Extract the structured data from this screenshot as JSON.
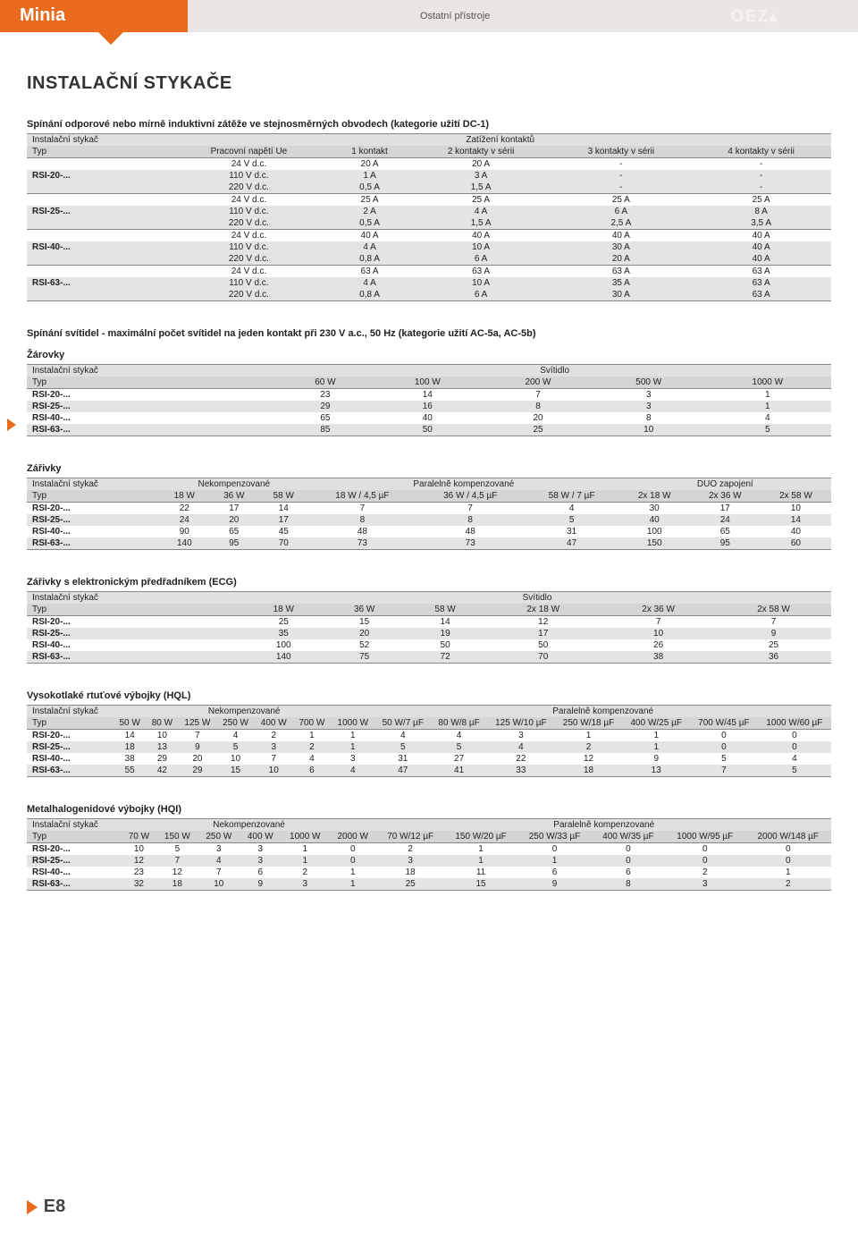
{
  "header": {
    "brand": "Minia",
    "mid": "Ostatní přístroje",
    "logo": "OEZ▴"
  },
  "title": "INSTALAČNÍ STYKAČE",
  "footer": "E8",
  "t1": {
    "caption": "Spínání odporové nebo mírně induktivní zátěže ve stejnosměrných obvodech (kategorie užití DC-1)",
    "h1": "Instalační stykač",
    "h2": "Zatížení kontaktů",
    "cols": [
      "Typ",
      "Pracovní napětí Ue",
      "1 kontakt",
      "2 kontakty v sérii",
      "3 kontakty v sérii",
      "4 kontakty v sérii"
    ],
    "groups": [
      {
        "type": "RSI-20-...",
        "rows": [
          [
            "24 V d.c.",
            "20 A",
            "20 A",
            "-",
            "-"
          ],
          [
            "110 V d.c.",
            "1 A",
            "3 A",
            "-",
            "-"
          ],
          [
            "220 V d.c.",
            "0,5 A",
            "1,5 A",
            "-",
            "-"
          ]
        ]
      },
      {
        "type": "RSI-25-...",
        "rows": [
          [
            "24 V d.c.",
            "25 A",
            "25 A",
            "25 A",
            "25 A"
          ],
          [
            "110 V d.c.",
            "2 A",
            "4 A",
            "6 A",
            "8 A"
          ],
          [
            "220 V d.c.",
            "0,5 A",
            "1,5 A",
            "2,5 A",
            "3,5 A"
          ]
        ]
      },
      {
        "type": "RSI-40-...",
        "rows": [
          [
            "24 V d.c.",
            "40 A",
            "40 A",
            "40 A",
            "40 A"
          ],
          [
            "110 V d.c.",
            "4 A",
            "10 A",
            "30 A",
            "40 A"
          ],
          [
            "220 V d.c.",
            "0,8 A",
            "6 A",
            "20 A",
            "40 A"
          ]
        ]
      },
      {
        "type": "RSI-63-...",
        "rows": [
          [
            "24 V d.c.",
            "63 A",
            "63 A",
            "63 A",
            "63 A"
          ],
          [
            "110 V d.c.",
            "4 A",
            "10 A",
            "35 A",
            "63 A"
          ],
          [
            "220 V d.c.",
            "0,8 A",
            "6 A",
            "30 A",
            "63 A"
          ]
        ]
      }
    ]
  },
  "t2": {
    "caption": "Spínání svítidel - maximální počet svítidel na jeden kontakt při 230 V a.c., 50 Hz  (kategorie užití AC-5a, AC-5b)",
    "sub": "Žárovky",
    "h1": "Instalační stykač",
    "h2": "Svítidlo",
    "cols": [
      "Typ",
      "60 W",
      "100 W",
      "200 W",
      "500 W",
      "1000 W"
    ],
    "rows": [
      [
        "RSI-20-...",
        "23",
        "14",
        "7",
        "3",
        "1"
      ],
      [
        "RSI-25-...",
        "29",
        "16",
        "8",
        "3",
        "1"
      ],
      [
        "RSI-40-...",
        "65",
        "40",
        "20",
        "8",
        "4"
      ],
      [
        "RSI-63-...",
        "85",
        "50",
        "25",
        "10",
        "5"
      ]
    ]
  },
  "t3": {
    "sub": "Zářivky",
    "h1": "Instalační stykač",
    "groups": [
      "Nekompenzované",
      "Paralelně kompenzované",
      "DUO zapojení"
    ],
    "cols": [
      "Typ",
      "18 W",
      "36 W",
      "58 W",
      "18 W / 4,5 µF",
      "36 W / 4,5 µF",
      "58 W /  7 µF",
      "2x 18 W",
      "2x 36 W",
      "2x 58 W"
    ],
    "rows": [
      [
        "RSI-20-...",
        "22",
        "17",
        "14",
        "7",
        "7",
        "4",
        "30",
        "17",
        "10"
      ],
      [
        "RSI-25-...",
        "24",
        "20",
        "17",
        "8",
        "8",
        "5",
        "40",
        "24",
        "14"
      ],
      [
        "RSI-40-...",
        "90",
        "65",
        "45",
        "48",
        "48",
        "31",
        "100",
        "65",
        "40"
      ],
      [
        "RSI-63-...",
        "140",
        "95",
        "70",
        "73",
        "73",
        "47",
        "150",
        "95",
        "60"
      ]
    ]
  },
  "t4": {
    "sub": "Zářivky s elektronickým předřadníkem (ECG)",
    "h1": "Instalační stykač",
    "h2": "Svítidlo",
    "cols": [
      "Typ",
      "18 W",
      "36 W",
      "58 W",
      "2x 18 W",
      "2x 36 W",
      "2x 58 W"
    ],
    "rows": [
      [
        "RSI-20-...",
        "25",
        "15",
        "14",
        "12",
        "7",
        "7"
      ],
      [
        "RSI-25-...",
        "35",
        "20",
        "19",
        "17",
        "10",
        "9"
      ],
      [
        "RSI-40-...",
        "100",
        "52",
        "50",
        "50",
        "26",
        "25"
      ],
      [
        "RSI-63-...",
        "140",
        "75",
        "72",
        "70",
        "38",
        "36"
      ]
    ]
  },
  "t5": {
    "sub": "Vysokotlaké rtuťové výbojky (HQL)",
    "h1": "Instalační stykač",
    "groups": [
      "Nekompenzované",
      "Paralelně  kompenzované"
    ],
    "cols": [
      "Typ",
      "50 W",
      "80 W",
      "125 W",
      "250 W",
      "400 W",
      "700 W",
      "1000 W",
      "50 W/7 µF",
      "80 W/8 µF",
      "125 W/10 µF",
      "250 W/18 µF",
      "400 W/25 µF",
      "700 W/45 µF",
      "1000 W/60 µF"
    ],
    "rows": [
      [
        "RSI-20-...",
        "14",
        "10",
        "7",
        "4",
        "2",
        "1",
        "1",
        "4",
        "4",
        "3",
        "1",
        "1",
        "0",
        "0"
      ],
      [
        "RSI-25-...",
        "18",
        "13",
        "9",
        "5",
        "3",
        "2",
        "1",
        "5",
        "5",
        "4",
        "2",
        "1",
        "0",
        "0"
      ],
      [
        "RSI-40-...",
        "38",
        "29",
        "20",
        "10",
        "7",
        "4",
        "3",
        "31",
        "27",
        "22",
        "12",
        "9",
        "5",
        "4"
      ],
      [
        "RSI-63-...",
        "55",
        "42",
        "29",
        "15",
        "10",
        "6",
        "4",
        "47",
        "41",
        "33",
        "18",
        "13",
        "7",
        "5"
      ]
    ]
  },
  "t6": {
    "sub": "Metalhalogenidové výbojky (HQI)",
    "h1": "Instalační stykač",
    "groups": [
      "Nekompenzované",
      "Paralelně kompenzované"
    ],
    "cols": [
      "Typ",
      "70 W",
      "150 W",
      "250 W",
      "400 W",
      "1000 W",
      "2000 W",
      "70 W/12 µF",
      "150 W/20 µF",
      "250 W/33 µF",
      "400 W/35 µF",
      "1000 W/95 µF",
      "2000 W/148 µF"
    ],
    "rows": [
      [
        "RSI-20-...",
        "10",
        "5",
        "3",
        "3",
        "1",
        "0",
        "2",
        "1",
        "0",
        "0",
        "0",
        "0"
      ],
      [
        "RSI-25-...",
        "12",
        "7",
        "4",
        "3",
        "1",
        "0",
        "3",
        "1",
        "1",
        "0",
        "0",
        "0"
      ],
      [
        "RSI-40-...",
        "23",
        "12",
        "7",
        "6",
        "2",
        "1",
        "18",
        "11",
        "6",
        "6",
        "2",
        "1"
      ],
      [
        "RSI-63-...",
        "32",
        "18",
        "10",
        "9",
        "3",
        "1",
        "25",
        "15",
        "9",
        "8",
        "3",
        "2"
      ]
    ]
  }
}
